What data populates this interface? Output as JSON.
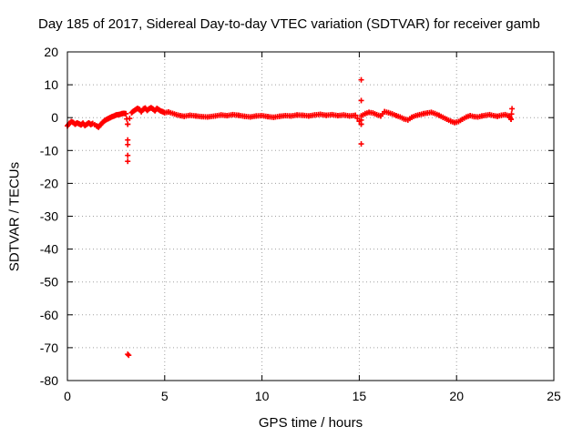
{
  "chart_data": {
    "type": "scatter",
    "title": "Day 185 of 2017, Sidereal Day-to-day VTEC variation (SDTVAR) for receiver gamb",
    "xlabel": "GPS time / hours",
    "ylabel": "SDTVAR / TECUs",
    "xlim": [
      0,
      25
    ],
    "ylim": [
      -80,
      20
    ],
    "xticks": [
      0,
      5,
      10,
      15,
      20,
      25
    ],
    "yticks": [
      20,
      10,
      0,
      -10,
      -20,
      -30,
      -40,
      -50,
      -60,
      -70,
      -80
    ],
    "grid": true,
    "marker": "+",
    "color": "#ff0000",
    "series": [
      {
        "name": "SDTVAR",
        "points": [
          [
            0.0,
            -2.5
          ],
          [
            0.1,
            -1.8
          ],
          [
            0.2,
            -1.2
          ],
          [
            0.3,
            -1.5
          ],
          [
            0.4,
            -2.0
          ],
          [
            0.5,
            -1.6
          ],
          [
            0.6,
            -1.9
          ],
          [
            0.7,
            -2.2
          ],
          [
            0.8,
            -1.7
          ],
          [
            0.9,
            -2.4
          ],
          [
            1.0,
            -2.0
          ],
          [
            1.1,
            -1.6
          ],
          [
            1.2,
            -2.1
          ],
          [
            1.3,
            -1.8
          ],
          [
            1.5,
            -2.5
          ],
          [
            1.6,
            -2.9
          ],
          [
            1.7,
            -2.2
          ],
          [
            1.8,
            -1.5
          ],
          [
            1.9,
            -1.0
          ],
          [
            2.0,
            -0.6
          ],
          [
            2.1,
            -0.3
          ],
          [
            2.2,
            0.0
          ],
          [
            2.3,
            0.3
          ],
          [
            2.4,
            0.5
          ],
          [
            2.5,
            0.8
          ],
          [
            2.6,
            0.9
          ],
          [
            2.7,
            1.0
          ],
          [
            2.8,
            1.2
          ],
          [
            2.9,
            1.3
          ],
          [
            3.0,
            1.2
          ],
          [
            3.1,
            -2.0
          ],
          [
            3.1,
            -6.8
          ],
          [
            3.1,
            -8.2
          ],
          [
            3.1,
            -11.5
          ],
          [
            3.1,
            -13.3
          ],
          [
            3.1,
            -72.0
          ],
          [
            3.15,
            -72.3
          ],
          [
            3.3,
            1.5
          ],
          [
            3.4,
            2.0
          ],
          [
            3.5,
            2.4
          ],
          [
            3.6,
            2.8
          ],
          [
            3.7,
            2.5
          ],
          [
            3.8,
            1.8
          ],
          [
            3.9,
            2.6
          ],
          [
            4.0,
            2.9
          ],
          [
            4.1,
            2.2
          ],
          [
            4.2,
            2.7
          ],
          [
            4.3,
            3.0
          ],
          [
            4.4,
            2.6
          ],
          [
            4.5,
            2.1
          ],
          [
            4.6,
            2.8
          ],
          [
            4.7,
            2.4
          ],
          [
            4.8,
            2.0
          ],
          [
            4.9,
            1.8
          ],
          [
            5.0,
            1.5
          ],
          [
            5.2,
            1.7
          ],
          [
            5.4,
            1.3
          ],
          [
            5.6,
            0.9
          ],
          [
            5.8,
            0.6
          ],
          [
            6.0,
            0.4
          ],
          [
            6.3,
            0.7
          ],
          [
            6.6,
            0.5
          ],
          [
            6.9,
            0.3
          ],
          [
            7.2,
            0.2
          ],
          [
            7.6,
            0.5
          ],
          [
            7.9,
            0.8
          ],
          [
            8.2,
            0.6
          ],
          [
            8.5,
            0.9
          ],
          [
            8.8,
            0.7
          ],
          [
            9.1,
            0.4
          ],
          [
            9.4,
            0.2
          ],
          [
            9.7,
            0.5
          ],
          [
            10.0,
            0.6
          ],
          [
            10.3,
            0.3
          ],
          [
            10.6,
            0.1
          ],
          [
            10.9,
            0.4
          ],
          [
            11.2,
            0.6
          ],
          [
            11.5,
            0.5
          ],
          [
            11.8,
            0.8
          ],
          [
            12.1,
            0.7
          ],
          [
            12.4,
            0.5
          ],
          [
            12.7,
            0.8
          ],
          [
            13.0,
            1.0
          ],
          [
            13.3,
            0.7
          ],
          [
            13.6,
            0.9
          ],
          [
            13.9,
            0.6
          ],
          [
            14.2,
            0.8
          ],
          [
            14.5,
            0.5
          ],
          [
            14.8,
            0.7
          ],
          [
            15.1,
            11.5
          ],
          [
            15.1,
            5.2
          ],
          [
            15.1,
            -2.0
          ],
          [
            15.1,
            -8.0
          ],
          [
            15.1,
            0.5
          ],
          [
            15.3,
            1.2
          ],
          [
            15.5,
            1.6
          ],
          [
            15.7,
            1.4
          ],
          [
            15.9,
            0.9
          ],
          [
            16.1,
            0.5
          ],
          [
            16.3,
            1.8
          ],
          [
            16.5,
            1.5
          ],
          [
            16.7,
            1.1
          ],
          [
            16.9,
            0.6
          ],
          [
            17.1,
            0.2
          ],
          [
            17.3,
            -0.4
          ],
          [
            17.5,
            -0.7
          ],
          [
            17.7,
            0.1
          ],
          [
            17.9,
            0.6
          ],
          [
            18.1,
            0.9
          ],
          [
            18.3,
            1.2
          ],
          [
            18.5,
            1.4
          ],
          [
            18.7,
            1.6
          ],
          [
            18.9,
            1.2
          ],
          [
            19.1,
            0.7
          ],
          [
            19.3,
            0.1
          ],
          [
            19.5,
            -0.5
          ],
          [
            19.7,
            -1.1
          ],
          [
            19.9,
            -1.5
          ],
          [
            20.1,
            -1.2
          ],
          [
            20.3,
            -0.5
          ],
          [
            20.5,
            0.2
          ],
          [
            20.7,
            0.6
          ],
          [
            20.9,
            0.3
          ],
          [
            21.1,
            0.2
          ],
          [
            21.3,
            0.5
          ],
          [
            21.5,
            0.7
          ],
          [
            21.7,
            0.9
          ],
          [
            21.9,
            0.6
          ],
          [
            22.1,
            0.4
          ],
          [
            22.3,
            0.7
          ],
          [
            22.5,
            0.9
          ],
          [
            22.7,
            0.5
          ],
          [
            22.8,
            -0.5
          ],
          [
            22.85,
            2.7
          ]
        ]
      }
    ]
  }
}
